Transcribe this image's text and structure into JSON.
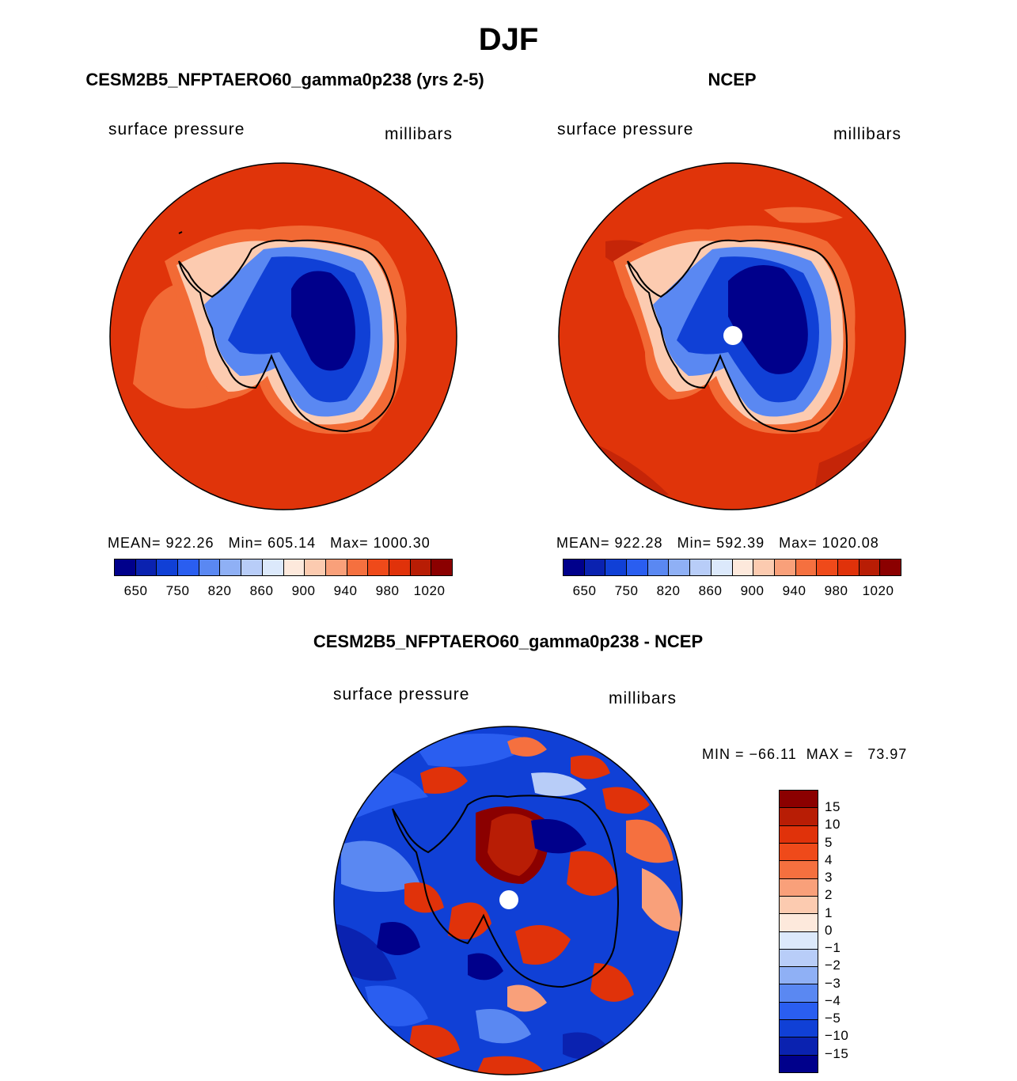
{
  "title": "DJF",
  "panels": {
    "model": {
      "title": "CESM2B5_NFPTAERO60_gamma0p238 (yrs 2-5)",
      "left_label": "surface pressure",
      "right_label": "millibars",
      "stats": "MEAN= 922.26   Min= 605.14   Max= 1000.30"
    },
    "obs": {
      "title": "NCEP",
      "left_label": "surface pressure",
      "right_label": "millibars",
      "stats": "MEAN= 922.28   Min= 592.39   Max= 1020.08"
    },
    "diff": {
      "title": "CESM2B5_NFPTAERO60_gamma0p238 - NCEP",
      "left_label": "surface pressure",
      "right_label": "millibars",
      "stats": "MIN = −66.11  MAX =   73.97"
    }
  },
  "colorbar_top": {
    "labels": [
      "650",
      "750",
      "820",
      "860",
      "900",
      "940",
      "980",
      "1020"
    ],
    "colors": [
      "#00008b",
      "#0a22b0",
      "#1040d6",
      "#2a5ef0",
      "#5a88f2",
      "#8fb0f5",
      "#b8cdf8",
      "#dce9fb",
      "#fde9dc",
      "#fccbb0",
      "#f9a07a",
      "#f5703f",
      "#ef4a1a",
      "#e0320a",
      "#b81d05",
      "#8b0000"
    ]
  },
  "colorbar_diff": {
    "labels": [
      "15",
      "10",
      "5",
      "4",
      "3",
      "2",
      "1",
      "0",
      "−1",
      "−2",
      "−3",
      "−4",
      "−5",
      "−10",
      "−15"
    ],
    "colors": [
      "#8b0000",
      "#b81d05",
      "#e0320a",
      "#ef4a1a",
      "#f5703f",
      "#f9a07a",
      "#fccbb0",
      "#fde9dc",
      "#dce9fb",
      "#b8cdf8",
      "#8fb0f5",
      "#5a88f2",
      "#2a5ef0",
      "#1040d6",
      "#0a22b0",
      "#00008b"
    ]
  }
}
